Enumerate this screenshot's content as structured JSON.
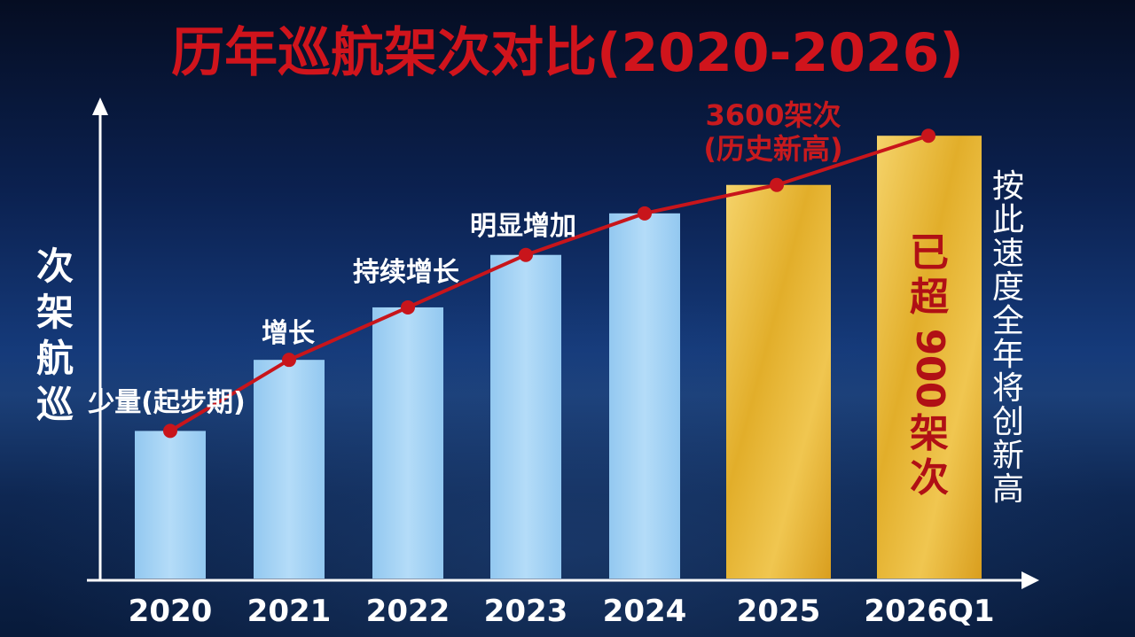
{
  "chart_data": {
    "type": "bar",
    "title": "历年巡航架次对比(2020-2026)",
    "ylabel": "巡航架次",
    "xlabel": "",
    "categories": [
      "2020",
      "2021",
      "2022",
      "2023",
      "2024",
      "2025",
      "2026Q1"
    ],
    "values": [
      1350,
      2000,
      2480,
      2960,
      3340,
      3600,
      4050
    ],
    "line_values": [
      1350,
      2000,
      2480,
      2960,
      3340,
      3600,
      4050
    ],
    "ylim": [
      0,
      4400
    ],
    "grid": false,
    "bar_colors": [
      "#a8d4f5",
      "#a8d4f5",
      "#a8d4f5",
      "#a8d4f5",
      "#a8d4f5",
      "#e8b830",
      "#e8b830"
    ],
    "line_color": "#c8151b",
    "title_color": "#d0141c",
    "annotations": [
      {
        "category": "2020",
        "text": "少量(起步期)"
      },
      {
        "category": "2021",
        "text": "增长"
      },
      {
        "category": "2022",
        "text": "持续增长"
      },
      {
        "category": "2023",
        "text": "明显增加"
      },
      {
        "category": "2025",
        "lines": [
          "3600架次",
          "(历史新高)"
        ]
      }
    ],
    "bar_annotation": {
      "category": "2026Q1",
      "text": "已超900架次"
    },
    "side_note": "按此速度全年将创新高"
  }
}
